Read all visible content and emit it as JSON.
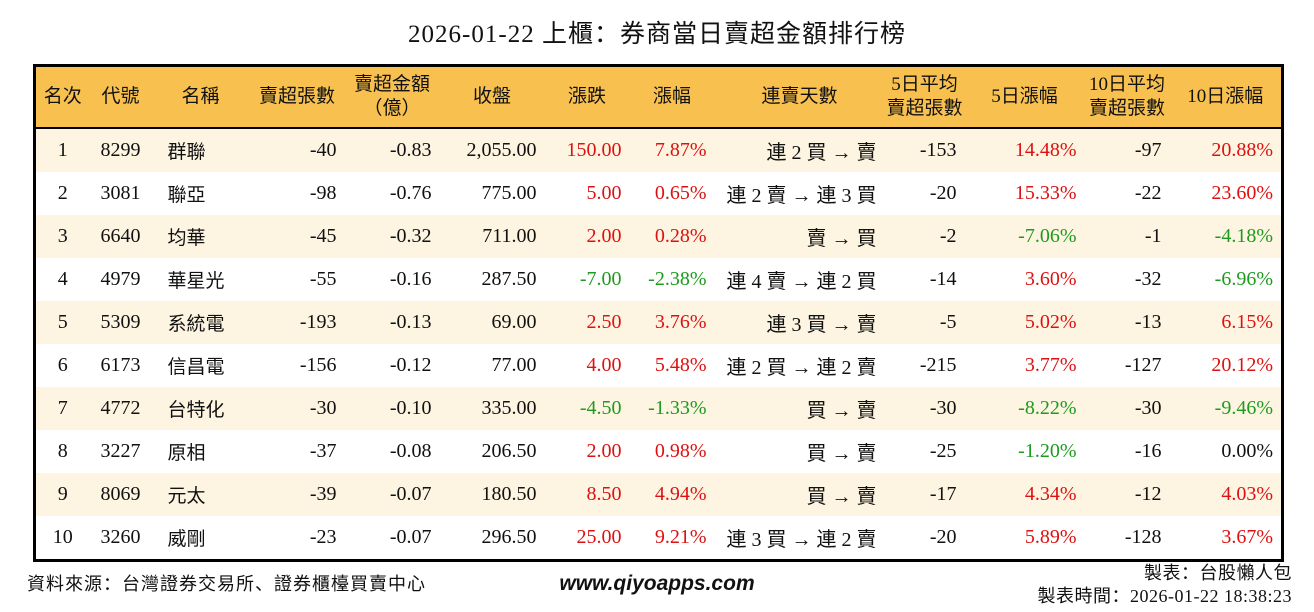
{
  "title": "2026-01-22 上櫃：券商當日賣超金額排行榜",
  "colors": {
    "header_bg": "#f7c04f",
    "row_stripe": "#fdf5e1",
    "up_red": "#dd1111",
    "down_green": "#1e9b1e",
    "border": "#000000"
  },
  "table": {
    "columns": [
      {
        "key": "rank",
        "label": "名次",
        "align": "center",
        "width": 55
      },
      {
        "key": "code",
        "label": "代號",
        "align": "center",
        "width": 62
      },
      {
        "key": "name",
        "label": "名稱",
        "align": "left",
        "width": 98
      },
      {
        "key": "net_sell_vol",
        "label": "賣超張數",
        "align": "right",
        "width": 95
      },
      {
        "key": "net_sell_amt",
        "label": "賣超金額\n（億）",
        "align": "right",
        "width": 95
      },
      {
        "key": "close",
        "label": "收盤",
        "align": "right",
        "width": 105
      },
      {
        "key": "change",
        "label": "漲跌",
        "align": "right",
        "width": 85
      },
      {
        "key": "change_pct",
        "label": "漲幅",
        "align": "right",
        "width": 85
      },
      {
        "key": "streak",
        "label": "連賣天數",
        "align": "right",
        "width": 170
      },
      {
        "key": "avg5",
        "label": "5日平均\n賣超張數",
        "align": "right",
        "width": 80
      },
      {
        "key": "pct5",
        "label": "5日漲幅",
        "align": "right",
        "width": 120
      },
      {
        "key": "avg10",
        "label": "10日平均\n賣超張數",
        "align": "right",
        "width": 85
      },
      {
        "key": "pct10",
        "label": "10日漲幅",
        "align": "right",
        "width": 113
      }
    ],
    "rows": [
      {
        "rank": "1",
        "code": "8299",
        "name": "群聯",
        "net_sell_vol": "-40",
        "net_sell_amt": "-0.83",
        "close": "2,055.00",
        "change": {
          "text": "150.00",
          "dir": "up"
        },
        "change_pct": {
          "text": "7.87%",
          "dir": "up"
        },
        "streak": "連 2 買 → 賣",
        "avg5": "-153",
        "pct5": {
          "text": "14.48%",
          "dir": "up"
        },
        "avg10": "-97",
        "pct10": {
          "text": "20.88%",
          "dir": "up"
        }
      },
      {
        "rank": "2",
        "code": "3081",
        "name": "聯亞",
        "net_sell_vol": "-98",
        "net_sell_amt": "-0.76",
        "close": "775.00",
        "change": {
          "text": "5.00",
          "dir": "up"
        },
        "change_pct": {
          "text": "0.65%",
          "dir": "up"
        },
        "streak": "連 2 賣 → 連 3 買",
        "avg5": "-20",
        "pct5": {
          "text": "15.33%",
          "dir": "up"
        },
        "avg10": "-22",
        "pct10": {
          "text": "23.60%",
          "dir": "up"
        }
      },
      {
        "rank": "3",
        "code": "6640",
        "name": "均華",
        "net_sell_vol": "-45",
        "net_sell_amt": "-0.32",
        "close": "711.00",
        "change": {
          "text": "2.00",
          "dir": "up"
        },
        "change_pct": {
          "text": "0.28%",
          "dir": "up"
        },
        "streak": "賣 → 買",
        "avg5": "-2",
        "pct5": {
          "text": "-7.06%",
          "dir": "down"
        },
        "avg10": "-1",
        "pct10": {
          "text": "-4.18%",
          "dir": "down"
        }
      },
      {
        "rank": "4",
        "code": "4979",
        "name": "華星光",
        "net_sell_vol": "-55",
        "net_sell_amt": "-0.16",
        "close": "287.50",
        "change": {
          "text": "-7.00",
          "dir": "down"
        },
        "change_pct": {
          "text": "-2.38%",
          "dir": "down"
        },
        "streak": "連 4 賣 → 連 2 買",
        "avg5": "-14",
        "pct5": {
          "text": "3.60%",
          "dir": "up"
        },
        "avg10": "-32",
        "pct10": {
          "text": "-6.96%",
          "dir": "down"
        }
      },
      {
        "rank": "5",
        "code": "5309",
        "name": "系統電",
        "net_sell_vol": "-193",
        "net_sell_amt": "-0.13",
        "close": "69.00",
        "change": {
          "text": "2.50",
          "dir": "up"
        },
        "change_pct": {
          "text": "3.76%",
          "dir": "up"
        },
        "streak": "連 3 買 → 賣",
        "avg5": "-5",
        "pct5": {
          "text": "5.02%",
          "dir": "up"
        },
        "avg10": "-13",
        "pct10": {
          "text": "6.15%",
          "dir": "up"
        }
      },
      {
        "rank": "6",
        "code": "6173",
        "name": "信昌電",
        "net_sell_vol": "-156",
        "net_sell_amt": "-0.12",
        "close": "77.00",
        "change": {
          "text": "4.00",
          "dir": "up"
        },
        "change_pct": {
          "text": "5.48%",
          "dir": "up"
        },
        "streak": "連 2 買 → 連 2 賣",
        "avg5": "-215",
        "pct5": {
          "text": "3.77%",
          "dir": "up"
        },
        "avg10": "-127",
        "pct10": {
          "text": "20.12%",
          "dir": "up"
        }
      },
      {
        "rank": "7",
        "code": "4772",
        "name": "台特化",
        "net_sell_vol": "-30",
        "net_sell_amt": "-0.10",
        "close": "335.00",
        "change": {
          "text": "-4.50",
          "dir": "down"
        },
        "change_pct": {
          "text": "-1.33%",
          "dir": "down"
        },
        "streak": "買 → 賣",
        "avg5": "-30",
        "pct5": {
          "text": "-8.22%",
          "dir": "down"
        },
        "avg10": "-30",
        "pct10": {
          "text": "-9.46%",
          "dir": "down"
        }
      },
      {
        "rank": "8",
        "code": "3227",
        "name": "原相",
        "net_sell_vol": "-37",
        "net_sell_amt": "-0.08",
        "close": "206.50",
        "change": {
          "text": "2.00",
          "dir": "up"
        },
        "change_pct": {
          "text": "0.98%",
          "dir": "up"
        },
        "streak": "買 → 賣",
        "avg5": "-25",
        "pct5": {
          "text": "-1.20%",
          "dir": "down"
        },
        "avg10": "-16",
        "pct10": {
          "text": "0.00%",
          "dir": "flat"
        }
      },
      {
        "rank": "9",
        "code": "8069",
        "name": "元太",
        "net_sell_vol": "-39",
        "net_sell_amt": "-0.07",
        "close": "180.50",
        "change": {
          "text": "8.50",
          "dir": "up"
        },
        "change_pct": {
          "text": "4.94%",
          "dir": "up"
        },
        "streak": "買 → 賣",
        "avg5": "-17",
        "pct5": {
          "text": "4.34%",
          "dir": "up"
        },
        "avg10": "-12",
        "pct10": {
          "text": "4.03%",
          "dir": "up"
        }
      },
      {
        "rank": "10",
        "code": "3260",
        "name": "威剛",
        "net_sell_vol": "-23",
        "net_sell_amt": "-0.07",
        "close": "296.50",
        "change": {
          "text": "25.00",
          "dir": "up"
        },
        "change_pct": {
          "text": "9.21%",
          "dir": "up"
        },
        "streak": "連 3 買 → 連 2 賣",
        "avg5": "-20",
        "pct5": {
          "text": "5.89%",
          "dir": "up"
        },
        "avg10": "-128",
        "pct10": {
          "text": "3.67%",
          "dir": "up"
        }
      }
    ]
  },
  "footer": {
    "source": "資料來源：台灣證券交易所、證券櫃檯買賣中心",
    "website": "www.qiyoapps.com",
    "made_by": "製表：台股懶人包",
    "made_at": "製表時間：2026-01-22 18:38:23"
  }
}
